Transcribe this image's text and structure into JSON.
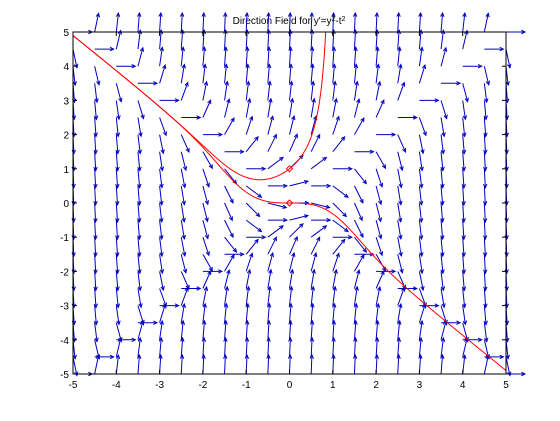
{
  "chart_data": {
    "type": "direction-field",
    "title": {
      "prefix": "Direction Field for y'=y",
      "sup1": "2",
      "middle": "-t",
      "sup2": "2"
    },
    "xlabel": "",
    "ylabel": "",
    "xlim": [
      -5,
      5
    ],
    "ylim": [
      -5,
      5
    ],
    "xticks": [
      "-5",
      "-4",
      "-3",
      "-2",
      "-1",
      "0",
      "1",
      "2",
      "3",
      "4",
      "5"
    ],
    "yticks": [
      "-5",
      "-4",
      "-3",
      "-2",
      "-1",
      "0",
      "1",
      "2",
      "3",
      "4",
      "5"
    ],
    "grid": false,
    "field": {
      "ode": "y' = y^2 - t^2",
      "t_start": -5,
      "t_end": 5,
      "t_step": 0.5,
      "y_start": -5,
      "y_end": 5,
      "y_step": 0.5,
      "color": "#0000bf"
    },
    "solutions": [
      {
        "t0": 0,
        "y0": 1,
        "color": "#ff0000"
      },
      {
        "t0": 0,
        "y0": 0,
        "color": "#ff0000"
      }
    ]
  }
}
